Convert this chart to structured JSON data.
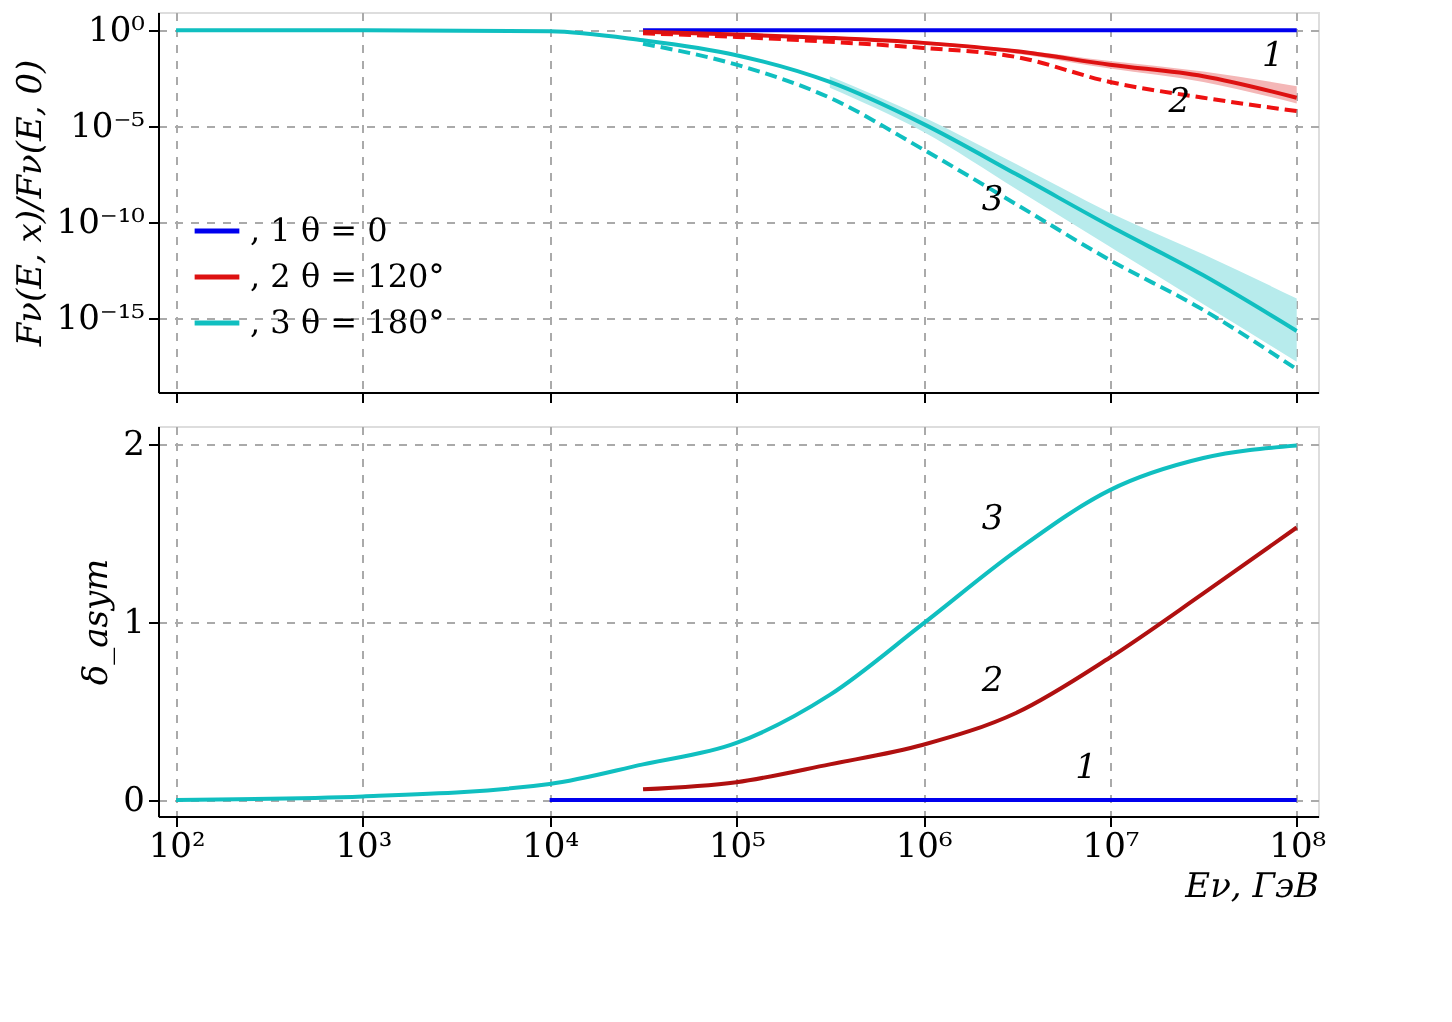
{
  "chart_data": [
    {
      "type": "line",
      "ylabel": "Fν(E, x)/Fν(E, 0)",
      "log": "xy",
      "grid": true,
      "legend": "left",
      "tick_labels": "y",
      "xlim": [
        80,
        130000000
      ],
      "xticks": [
        {
          "value": 100,
          "label": null
        },
        {
          "value": 1000,
          "label": null
        },
        {
          "value": 10000,
          "label": null
        },
        {
          "value": 100000,
          "label": null
        },
        {
          "value": 1000000,
          "label": null
        },
        {
          "value": 10000000,
          "label": null
        },
        {
          "value": 100000000,
          "label": null
        }
      ],
      "ylim": [
        1.3e-19,
        9
      ],
      "yticks": [
        {
          "value": 1,
          "label": "10⁰"
        },
        {
          "value": 1e-05,
          "label": "10⁻⁵"
        },
        {
          "value": 1e-10,
          "label": "10⁻¹⁰"
        },
        {
          "value": 1e-15,
          "label": "10⁻¹⁵"
        }
      ],
      "x": [
        31623,
        100000,
        316228,
        1000000,
        3162278,
        10000000,
        31622777,
        100000000
      ],
      "series": [
        {
          "name": ", 1  θ = 0",
          "color": "#0000ee",
          "line_style": "solid",
          "x": [
            31623,
            100000,
            1000000,
            10000000,
            100000000
          ],
          "values": [
            1,
            1,
            1,
            1,
            1
          ]
        },
        {
          "color": "#ee1111",
          "line_style": "dashed",
          "values": [
            0.7,
            0.45,
            0.25,
            0.12,
            0.04,
            0.002,
            0.0003,
            6e-05
          ]
        },
        {
          "color": "#10bfc0",
          "line_style": "dashed",
          "values": [
            0.2,
            0.016,
            0.0003,
            6e-07,
            8e-10,
            1e-12,
            2.5e-15,
            2e-18
          ]
        },
        {
          "name": ", 2  θ = 120°",
          "color": "#dd1111",
          "line_style": "solid",
          "values": [
            0.85,
            0.6,
            0.4,
            0.22,
            0.08,
            0.016,
            0.004,
            0.0003
          ],
          "lower": [
            null,
            null,
            null,
            0.18,
            0.06,
            0.01,
            0.002,
            0.00015
          ],
          "upper": [
            null,
            null,
            null,
            0.27,
            0.1,
            0.025,
            0.007,
            0.0012
          ]
        },
        {
          "name": ", 3  θ = 180°",
          "color": "#10bfc0",
          "line_style": "solid",
          "x": [
            100,
            1000,
            10000,
            31623,
            100000,
            316228,
            1000000,
            3162278,
            10000000,
            31622777,
            100000000
          ],
          "values": [
            1,
            1,
            0.9,
            0.3,
            0.05,
            0.002,
            1.3e-05,
            3e-08,
            6e-11,
            1.6e-13,
            2e-16
          ],
          "lower": [
            null,
            null,
            null,
            null,
            null,
            0.001,
            5e-06,
            5e-09,
            5e-12,
            5e-15,
            5e-18
          ],
          "upper": [
            null,
            null,
            null,
            null,
            null,
            0.004,
            3e-05,
            1e-07,
            3e-10,
            2e-12,
            1e-14
          ]
        }
      ],
      "annotations": [
        {
          "text": "1",
          "x": 100000000,
          "y": 1
        },
        {
          "text": "2",
          "x": 31622777,
          "y": 0.004
        },
        {
          "text": "3",
          "x": 3162278,
          "y": 3e-08
        }
      ]
    },
    {
      "type": "line",
      "ylabel": "δ_asym",
      "xlabel": "Eν, ГэВ",
      "log": "x",
      "grid": true,
      "xlim": [
        80,
        130000000
      ],
      "xticks": [
        {
          "value": 100,
          "label": "10²"
        },
        {
          "value": 1000,
          "label": "10³"
        },
        {
          "value": 10000,
          "label": "10⁴"
        },
        {
          "value": 100000,
          "label": "10⁵"
        },
        {
          "value": 1000000,
          "label": "10⁶"
        },
        {
          "value": 10000000,
          "label": "10⁷"
        },
        {
          "value": 100000000,
          "label": "10⁸"
        }
      ],
      "ylim": [
        -0.09,
        2.1
      ],
      "yticks": [
        0,
        1,
        2
      ],
      "x": [
        31623,
        100000,
        316228,
        1000000,
        3162278,
        10000000,
        31622777,
        100000000
      ],
      "series": [
        {
          "color": "#0000ee",
          "line_style": "solid",
          "x": [
            10000,
            100000,
            1000000,
            10000000,
            100000000
          ],
          "values": [
            0,
            0,
            0,
            0,
            0
          ]
        },
        {
          "color": "#b01010",
          "line_style": "solid",
          "values": [
            0.06,
            0.1,
            0.2,
            0.31,
            0.49,
            0.8,
            1.16,
            1.53
          ]
        },
        {
          "color": "#10bfc0",
          "line_style": "solid",
          "x": [
            100,
            1000,
            10000,
            31623,
            100000,
            316228,
            1000000,
            3162278,
            10000000,
            31622777,
            100000000
          ],
          "values": [
            0,
            0.02,
            0.09,
            0.2,
            0.32,
            0.59,
            0.99,
            1.4,
            1.74,
            1.92,
            1.99
          ]
        }
      ],
      "annotations": [
        {
          "text": "1",
          "x": 10000000,
          "y": 0
        },
        {
          "text": "2",
          "x": 3162278,
          "y": 0.49
        },
        {
          "text": "3",
          "x": 3162278,
          "y": 1.4
        }
      ]
    }
  ]
}
